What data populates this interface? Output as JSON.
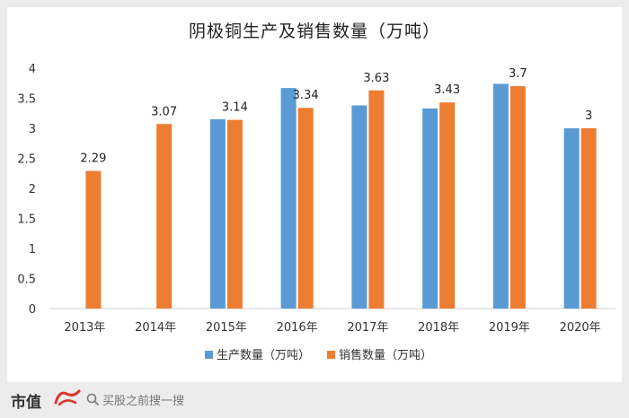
{
  "title": "阴极铜生产及销售数量（万吨）",
  "chart_data": {
    "type": "bar",
    "title": "阴极铜生产及销售数量（万吨）",
    "categories": [
      "2013年",
      "2014年",
      "2015年",
      "2016年",
      "2017年",
      "2018年",
      "2019年",
      "2020年"
    ],
    "series": [
      {
        "name": "生产数量（万吨）",
        "values": [
          null,
          null,
          3.15,
          3.67,
          3.38,
          3.33,
          3.74,
          3.0
        ],
        "labels": [
          "",
          "",
          "",
          "",
          "",
          "",
          "",
          ""
        ],
        "color": "#5b9bd5"
      },
      {
        "name": "销售数量（万吨）",
        "values": [
          2.29,
          3.07,
          3.14,
          3.34,
          3.63,
          3.43,
          3.7,
          3.0
        ],
        "labels": [
          "2.29",
          "3.07",
          "3.14",
          "3.34",
          "3.63",
          "3.43",
          "3.7",
          "3"
        ],
        "color": "#ed7d31"
      }
    ],
    "yticks": [
      "0",
      "0.5",
      "1",
      "1.5",
      "2",
      "2.5",
      "3",
      "3.5",
      "4"
    ],
    "ylim": [
      0,
      4
    ],
    "legend_position": "bottom",
    "grid": false
  },
  "footer": {
    "brand": "市值",
    "search_text": "买股之前搜一搜"
  }
}
